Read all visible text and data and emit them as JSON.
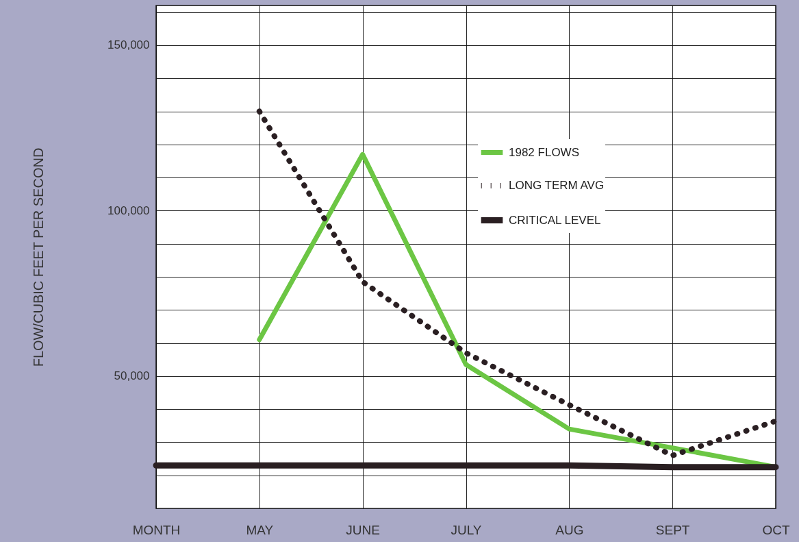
{
  "chart_data": {
    "type": "line",
    "ylabel": "FLOW/CUBIC FEET PER SECOND",
    "categories": [
      "MONTH",
      "MAY",
      "JUNE",
      "JULY",
      "AUG",
      "SEPT",
      "OCT"
    ],
    "series": [
      {
        "name": "1982 FLOWS",
        "color": "#6cc644",
        "line_style": "solid",
        "values": [
          null,
          61000,
          117000,
          53500,
          34000,
          28300,
          22500
        ]
      },
      {
        "name": "LONG TERM AVG",
        "color": "#2a1f22",
        "line_style": "dotted",
        "values": [
          null,
          130000,
          78500,
          57000,
          41300,
          26000,
          36400
        ]
      },
      {
        "name": "CRITICAL LEVEL",
        "color": "#2a1f22",
        "line_style": "solid",
        "values": [
          23000,
          23000,
          23000,
          23000,
          23000,
          22500,
          22500
        ]
      }
    ],
    "ylim": [
      10000,
      162000
    ],
    "yticks": [
      {
        "value": 20000,
        "label": null
      },
      {
        "value": 30000,
        "label": null
      },
      {
        "value": 40000,
        "label": null
      },
      {
        "value": 50000,
        "label": "50,000"
      },
      {
        "value": 60000,
        "label": null
      },
      {
        "value": 70000,
        "label": null
      },
      {
        "value": 80000,
        "label": null
      },
      {
        "value": 90000,
        "label": null
      },
      {
        "value": 100000,
        "label": "100,000"
      },
      {
        "value": 110000,
        "label": null
      },
      {
        "value": 120000,
        "label": null
      },
      {
        "value": 130000,
        "label": null
      },
      {
        "value": 140000,
        "label": null
      },
      {
        "value": 150000,
        "label": "150,000"
      },
      {
        "value": 160000,
        "label": null
      }
    ],
    "grid": true,
    "legend": "top right",
    "marker": "none"
  }
}
